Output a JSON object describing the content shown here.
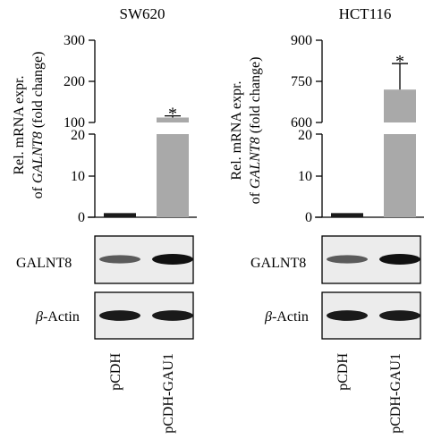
{
  "chart_data": [
    {
      "type": "bar",
      "panel": "left",
      "title": "SW620",
      "ylabel_line1": "Rel. mRNA expr.",
      "ylabel_line2_prefix": "of ",
      "ylabel_gene": "GALNT8",
      "ylabel_line2_suffix": " (fold change)",
      "axis_break": true,
      "lower_ylim": [
        0,
        20
      ],
      "lower_ticks": [
        "0",
        "10",
        "20"
      ],
      "upper_ylim": [
        100,
        300
      ],
      "upper_ticks": [
        "100",
        "200",
        "300"
      ],
      "categories": [
        "pCDH",
        "pCDH-GAU1"
      ],
      "values": [
        1,
        112
      ],
      "errors": [
        0,
        4
      ],
      "significance": [
        "",
        "*"
      ],
      "bar_colors": [
        "#1a1a1a",
        "#a9a9a9"
      ]
    },
    {
      "type": "bar",
      "panel": "right",
      "title": "HCT116",
      "ylabel_line1": "Rel. mRNA expr.",
      "ylabel_line2_prefix": "of ",
      "ylabel_gene": "GALNT8",
      "ylabel_line2_suffix": " (fold change)",
      "axis_break": true,
      "lower_ylim": [
        0,
        20
      ],
      "lower_ticks": [
        "0",
        "10",
        "20"
      ],
      "upper_ylim": [
        600,
        900
      ],
      "upper_ticks": [
        "600",
        "750",
        "900"
      ],
      "categories": [
        "pCDH",
        "pCDH-GAU1"
      ],
      "values": [
        1,
        720
      ],
      "errors": [
        0,
        95
      ],
      "significance": [
        "",
        "*"
      ],
      "bar_colors": [
        "#1a1a1a",
        "#a9a9a9"
      ]
    }
  ],
  "blots": {
    "rows": [
      {
        "label": "GALNT8",
        "greek": "",
        "intensities": [
          0.55,
          1.0
        ]
      },
      {
        "label": "-Actin",
        "greek": "β",
        "intensities": [
          0.95,
          0.95
        ]
      }
    ],
    "lanes": [
      "pCDH",
      "pCDH-GAU1"
    ]
  }
}
